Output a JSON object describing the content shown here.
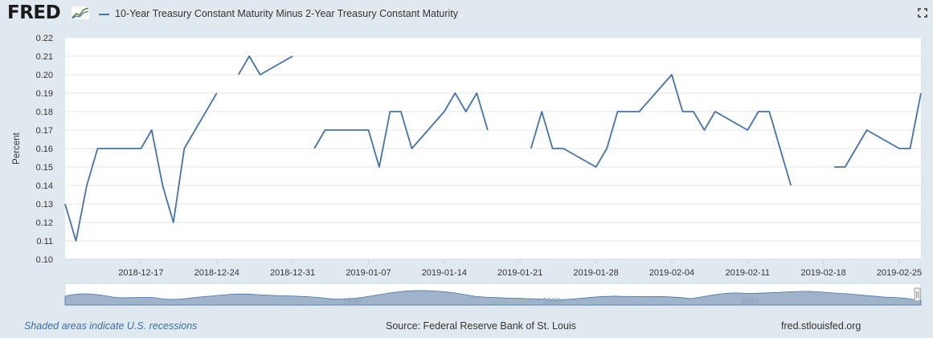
{
  "header": {
    "logo_text": "FRED",
    "series_title": "10-Year Treasury Constant Maturity Minus 2-Year Treasury Constant Maturity"
  },
  "footer": {
    "note": "Shaded areas indicate U.S. recessions",
    "source": "Source: Federal Reserve Bank of St. Louis",
    "site": "fred.stlouisfed.org"
  },
  "colors": {
    "line": "#4572a7",
    "background": "#e1e9f0",
    "plot": "#ffffff",
    "navigator_fill": "#9fb3ca"
  },
  "icons": [
    "fred-sparkline-icon",
    "fullscreen-icon"
  ],
  "navigator": {
    "year_labels": [
      "1990",
      "2000",
      "2010"
    ]
  },
  "chart_data": {
    "type": "line",
    "title": "10-Year Treasury Constant Maturity Minus 2-Year Treasury Constant Maturity",
    "xlabel": "",
    "ylabel": "Percent",
    "ylim": [
      0.1,
      0.22
    ],
    "yticks": [
      "0.10",
      "0.11",
      "0.12",
      "0.13",
      "0.14",
      "0.15",
      "0.16",
      "0.17",
      "0.18",
      "0.19",
      "0.20",
      "0.21",
      "0.22"
    ],
    "xlim": [
      "2018-12-10",
      "2019-02-27"
    ],
    "xticks": [
      "2018-12-17",
      "2018-12-24",
      "2018-12-31",
      "2019-01-07",
      "2019-01-14",
      "2019-01-21",
      "2019-01-28",
      "2019-02-04",
      "2019-02-11",
      "2019-02-18",
      "2019-02-25"
    ],
    "grid": true,
    "legend": "top-left",
    "series": [
      {
        "name": "10-Year Treasury Constant Maturity Minus 2-Year Treasury Constant Maturity",
        "points": [
          [
            "2018-12-10",
            0.13
          ],
          [
            "2018-12-11",
            0.11
          ],
          [
            "2018-12-12",
            0.14
          ],
          [
            "2018-12-13",
            0.16
          ],
          [
            "2018-12-14",
            0.16
          ],
          [
            "2018-12-17",
            0.16
          ],
          [
            "2018-12-18",
            0.17
          ],
          [
            "2018-12-19",
            0.14
          ],
          [
            "2018-12-20",
            0.12
          ],
          [
            "2018-12-21",
            0.16
          ],
          [
            "2018-12-24",
            0.19
          ],
          [
            "2018-12-25",
            null
          ],
          [
            "2018-12-26",
            0.2
          ],
          [
            "2018-12-27",
            0.21
          ],
          [
            "2018-12-28",
            0.2
          ],
          [
            "2018-12-31",
            0.21
          ],
          [
            "2019-01-01",
            null
          ],
          [
            "2019-01-02",
            0.16
          ],
          [
            "2019-01-03",
            0.17
          ],
          [
            "2019-01-04",
            0.17
          ],
          [
            "2019-01-07",
            0.17
          ],
          [
            "2019-01-08",
            0.15
          ],
          [
            "2019-01-09",
            0.18
          ],
          [
            "2019-01-10",
            0.18
          ],
          [
            "2019-01-11",
            0.16
          ],
          [
            "2019-01-14",
            0.18
          ],
          [
            "2019-01-15",
            0.19
          ],
          [
            "2019-01-16",
            0.18
          ],
          [
            "2019-01-17",
            0.19
          ],
          [
            "2019-01-18",
            0.17
          ],
          [
            "2019-01-21",
            null
          ],
          [
            "2019-01-22",
            0.16
          ],
          [
            "2019-01-23",
            0.18
          ],
          [
            "2019-01-24",
            0.16
          ],
          [
            "2019-01-25",
            0.16
          ],
          [
            "2019-01-28",
            0.15
          ],
          [
            "2019-01-29",
            0.16
          ],
          [
            "2019-01-30",
            0.18
          ],
          [
            "2019-01-31",
            0.18
          ],
          [
            "2019-02-01",
            0.18
          ],
          [
            "2019-02-04",
            0.2
          ],
          [
            "2019-02-05",
            0.18
          ],
          [
            "2019-02-06",
            0.18
          ],
          [
            "2019-02-07",
            0.17
          ],
          [
            "2019-02-08",
            0.18
          ],
          [
            "2019-02-11",
            0.17
          ],
          [
            "2019-02-12",
            0.18
          ],
          [
            "2019-02-13",
            0.18
          ],
          [
            "2019-02-14",
            0.16
          ],
          [
            "2019-02-15",
            0.14
          ],
          [
            "2019-02-18",
            null
          ],
          [
            "2019-02-19",
            0.15
          ],
          [
            "2019-02-20",
            0.15
          ],
          [
            "2019-02-21",
            0.16
          ],
          [
            "2019-02-22",
            0.17
          ],
          [
            "2019-02-25",
            0.16
          ],
          [
            "2019-02-26",
            0.16
          ],
          [
            "2019-02-27",
            0.19
          ]
        ]
      }
    ]
  }
}
